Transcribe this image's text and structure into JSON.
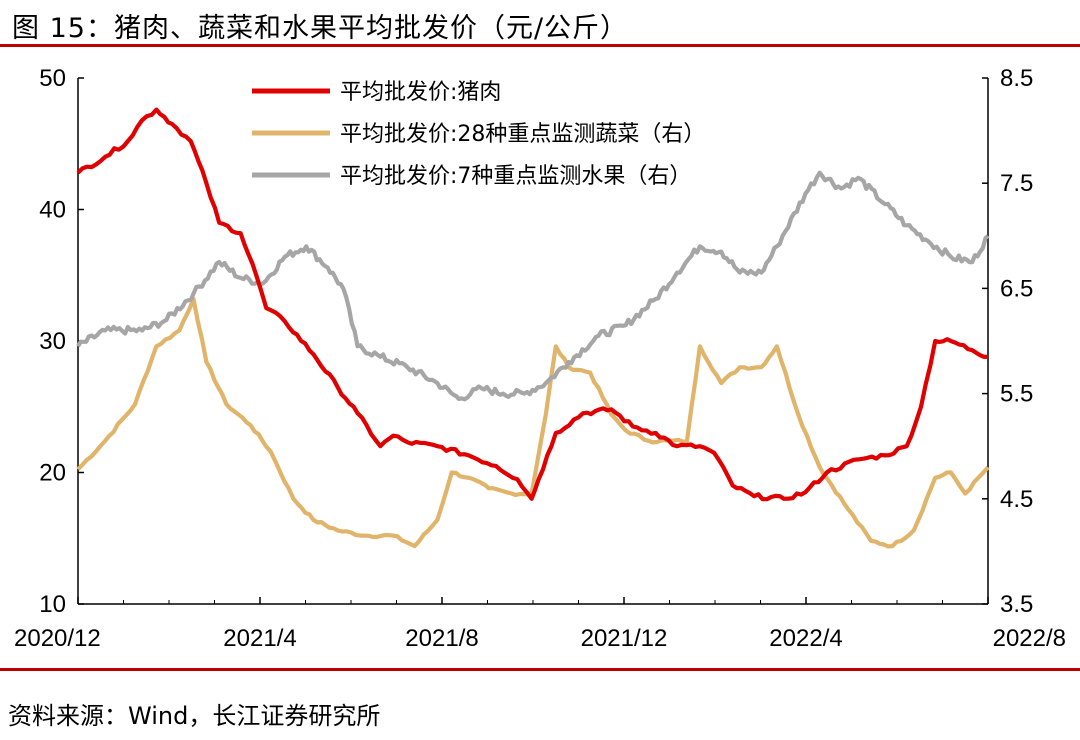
{
  "figure": {
    "title": "图 15：猪肉、蔬菜和水果平均批发价（元/公斤）",
    "source": "资料来源：Wind，长江证券研究所"
  },
  "colors": {
    "pork": "#e00000",
    "vegetables": "#e0b46a",
    "fruits": "#a6a6a6",
    "rule": "#c00000"
  },
  "chart_data": {
    "type": "line",
    "x_ticks": [
      "2020/12",
      "2021/4",
      "2021/8",
      "2021/12",
      "2022/4",
      "2022/8"
    ],
    "y_left": {
      "range": [
        10,
        50
      ],
      "ticks": [
        "50",
        "40",
        "30",
        "20",
        "10"
      ]
    },
    "y_right": {
      "range": [
        3.5,
        8.5
      ],
      "ticks": [
        "8.5",
        "7.5",
        "6.5",
        "5.5",
        "4.5",
        "3.5"
      ]
    },
    "x_range": [
      "2020-12-01",
      "2022-08-31"
    ],
    "legend_position": "top-center",
    "series": [
      {
        "name": "平均批发价:猪肉",
        "axis": "left",
        "points": [
          [
            "2020-12-01",
            42.8
          ],
          [
            "2020-12-20",
            44.0
          ],
          [
            "2021-01-05",
            45.2
          ],
          [
            "2021-01-15",
            46.8
          ],
          [
            "2021-01-25",
            47.6
          ],
          [
            "2021-02-05",
            46.5
          ],
          [
            "2021-02-18",
            45.2
          ],
          [
            "2021-03-01",
            42.0
          ],
          [
            "2021-03-10",
            39.0
          ],
          [
            "2021-03-25",
            38.2
          ],
          [
            "2021-04-05",
            35.0
          ],
          [
            "2021-04-12",
            32.5
          ],
          [
            "2021-04-25",
            31.5
          ],
          [
            "2021-05-15",
            29.0
          ],
          [
            "2021-06-01",
            26.5
          ],
          [
            "2021-06-15",
            24.5
          ],
          [
            "2021-07-01",
            22.0
          ],
          [
            "2021-07-10",
            22.8
          ],
          [
            "2021-07-20",
            22.3
          ],
          [
            "2021-08-10",
            22.0
          ],
          [
            "2021-09-01",
            21.3
          ],
          [
            "2021-09-20",
            20.5
          ],
          [
            "2021-10-05",
            19.5
          ],
          [
            "2021-10-15",
            18.0
          ],
          [
            "2021-10-20",
            19.5
          ],
          [
            "2021-11-01",
            23.0
          ],
          [
            "2021-11-20",
            24.5
          ],
          [
            "2021-12-10",
            24.8
          ],
          [
            "2021-12-25",
            23.5
          ],
          [
            "2022-01-10",
            23.0
          ],
          [
            "2022-01-25",
            22.0
          ],
          [
            "2022-02-10",
            22.0
          ],
          [
            "2022-02-20",
            21.5
          ],
          [
            "2022-03-05",
            19.0
          ],
          [
            "2022-03-20",
            18.2
          ],
          [
            "2022-04-10",
            18.0
          ],
          [
            "2022-04-25",
            18.5
          ],
          [
            "2022-05-10",
            20.0
          ],
          [
            "2022-06-01",
            21.0
          ],
          [
            "2022-06-20",
            21.3
          ],
          [
            "2022-07-05",
            22.0
          ],
          [
            "2022-07-15",
            25.0
          ],
          [
            "2022-07-25",
            30.0
          ],
          [
            "2022-08-05",
            30.0
          ],
          [
            "2022-08-20",
            29.3
          ],
          [
            "2022-08-31",
            28.8
          ]
        ]
      },
      {
        "name": "平均批发价:28种重点监测蔬菜（右）",
        "axis": "right",
        "points": [
          [
            "2020-12-01",
            4.78
          ],
          [
            "2020-12-20",
            5.05
          ],
          [
            "2021-01-10",
            5.4
          ],
          [
            "2021-01-25",
            5.95
          ],
          [
            "2021-02-10",
            6.1
          ],
          [
            "2021-02-20",
            6.4
          ],
          [
            "2021-03-01",
            5.8
          ],
          [
            "2021-03-15",
            5.4
          ],
          [
            "2021-04-01",
            5.2
          ],
          [
            "2021-04-15",
            4.95
          ],
          [
            "2021-05-01",
            4.5
          ],
          [
            "2021-05-15",
            4.3
          ],
          [
            "2021-06-01",
            4.2
          ],
          [
            "2021-06-20",
            4.15
          ],
          [
            "2021-07-10",
            4.15
          ],
          [
            "2021-07-25",
            4.05
          ],
          [
            "2021-08-10",
            4.3
          ],
          [
            "2021-08-20",
            4.75
          ],
          [
            "2021-09-01",
            4.7
          ],
          [
            "2021-09-15",
            4.6
          ],
          [
            "2021-10-01",
            4.55
          ],
          [
            "2021-10-15",
            4.55
          ],
          [
            "2021-10-25",
            5.3
          ],
          [
            "2021-11-01",
            5.95
          ],
          [
            "2021-11-10",
            5.75
          ],
          [
            "2021-11-25",
            5.7
          ],
          [
            "2021-12-10",
            5.3
          ],
          [
            "2021-12-20",
            5.15
          ],
          [
            "2022-01-05",
            5.05
          ],
          [
            "2022-01-20",
            5.05
          ],
          [
            "2022-02-01",
            5.05
          ],
          [
            "2022-02-10",
            5.95
          ],
          [
            "2022-02-25",
            5.6
          ],
          [
            "2022-03-10",
            5.75
          ],
          [
            "2022-03-25",
            5.75
          ],
          [
            "2022-04-05",
            5.95
          ],
          [
            "2022-04-20",
            5.3
          ],
          [
            "2022-05-05",
            4.8
          ],
          [
            "2022-05-25",
            4.4
          ],
          [
            "2022-06-10",
            4.1
          ],
          [
            "2022-06-25",
            4.05
          ],
          [
            "2022-07-10",
            4.2
          ],
          [
            "2022-07-25",
            4.7
          ],
          [
            "2022-08-05",
            4.75
          ],
          [
            "2022-08-15",
            4.55
          ],
          [
            "2022-08-31",
            4.8
          ]
        ]
      },
      {
        "name": "平均批发价:7种重点监测水果（右）",
        "axis": "right",
        "points": [
          [
            "2020-12-01",
            5.95
          ],
          [
            "2020-12-20",
            6.1
          ],
          [
            "2021-01-15",
            6.1
          ],
          [
            "2021-02-01",
            6.2
          ],
          [
            "2021-02-20",
            6.45
          ],
          [
            "2021-03-10",
            6.75
          ],
          [
            "2021-03-25",
            6.6
          ],
          [
            "2021-04-10",
            6.55
          ],
          [
            "2021-04-25",
            6.8
          ],
          [
            "2021-05-10",
            6.9
          ],
          [
            "2021-05-25",
            6.7
          ],
          [
            "2021-06-05",
            6.5
          ],
          [
            "2021-06-15",
            5.95
          ],
          [
            "2021-07-01",
            5.85
          ],
          [
            "2021-07-20",
            5.75
          ],
          [
            "2021-08-10",
            5.6
          ],
          [
            "2021-08-25",
            5.45
          ],
          [
            "2021-09-10",
            5.55
          ],
          [
            "2021-09-25",
            5.5
          ],
          [
            "2021-10-10",
            5.5
          ],
          [
            "2021-10-25",
            5.6
          ],
          [
            "2021-11-10",
            5.8
          ],
          [
            "2021-12-01",
            6.05
          ],
          [
            "2021-12-20",
            6.15
          ],
          [
            "2022-01-10",
            6.4
          ],
          [
            "2022-01-25",
            6.65
          ],
          [
            "2022-02-10",
            6.9
          ],
          [
            "2022-02-25",
            6.85
          ],
          [
            "2022-03-10",
            6.65
          ],
          [
            "2022-03-25",
            6.65
          ],
          [
            "2022-04-05",
            6.9
          ],
          [
            "2022-04-25",
            7.4
          ],
          [
            "2022-05-05",
            7.6
          ],
          [
            "2022-05-20",
            7.45
          ],
          [
            "2022-06-01",
            7.55
          ],
          [
            "2022-06-20",
            7.3
          ],
          [
            "2022-07-05",
            7.1
          ],
          [
            "2022-07-20",
            6.95
          ],
          [
            "2022-08-05",
            6.8
          ],
          [
            "2022-08-20",
            6.75
          ],
          [
            "2022-08-31",
            7.0
          ]
        ]
      }
    ]
  }
}
